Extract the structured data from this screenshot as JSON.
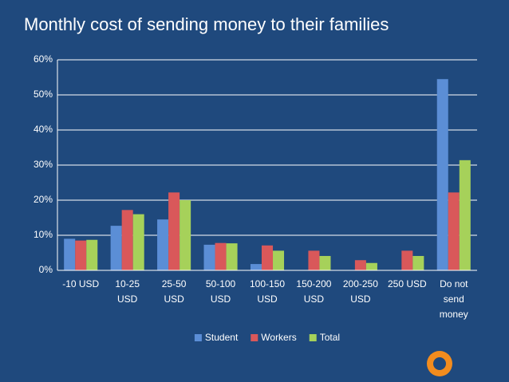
{
  "chart_data": {
    "type": "bar",
    "title": "Monthly cost of sending money to their families",
    "categories": [
      "-10 USD",
      "10-25 USD",
      "25-50 USD",
      "50-100 USD",
      "100-150 USD",
      "150-200 USD",
      "200-250 USD",
      "250 USD",
      "Do not send money"
    ],
    "series": [
      {
        "name": "Student",
        "color": "#5b8ed6",
        "values": [
          9,
          12.7,
          14.5,
          7.3,
          1.8,
          0,
          0,
          0,
          54.5
        ]
      },
      {
        "name": "Workers",
        "color": "#d9585a",
        "values": [
          8.5,
          17.2,
          22.2,
          7.8,
          7.1,
          5.6,
          2.9,
          5.6,
          22.2
        ]
      },
      {
        "name": "Total",
        "color": "#a6d15a",
        "values": [
          8.7,
          16,
          20,
          7.7,
          5.6,
          4.1,
          2.1,
          4.1,
          31.4
        ]
      }
    ],
    "ylim": [
      0,
      60
    ],
    "yticks": [
      {
        "value": 0,
        "label": "0%"
      },
      {
        "value": 10,
        "label": "10%"
      },
      {
        "value": 20,
        "label": "20%"
      },
      {
        "value": 30,
        "label": "30%"
      },
      {
        "value": 40,
        "label": "40%"
      },
      {
        "value": 50,
        "label": "50%"
      },
      {
        "value": 60,
        "label": "60%"
      }
    ],
    "grid": true,
    "legend": "bottom"
  }
}
